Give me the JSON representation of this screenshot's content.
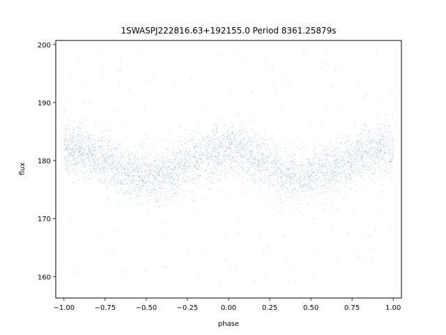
{
  "chart_data": {
    "type": "scatter",
    "title": "1SWASPJ222816.63+192155.0 Period 8361.25879s",
    "xlabel": "phase",
    "ylabel": "flux",
    "xlim": [
      -1.05,
      1.05
    ],
    "ylim": [
      156.3,
      200.7
    ],
    "x_ticks": [
      -1.0,
      -0.75,
      -0.5,
      -0.25,
      0.0,
      0.25,
      0.5,
      0.75,
      1.0
    ],
    "x_tick_labels": [
      "−1.00",
      "−0.75",
      "−0.50",
      "−0.25",
      "0.00",
      "0.25",
      "0.50",
      "0.75",
      "1.00"
    ],
    "y_ticks": [
      160,
      170,
      180,
      190,
      200
    ],
    "y_tick_labels": [
      "160",
      "170",
      "180",
      "190",
      "200"
    ],
    "grid": false,
    "legend": "none",
    "point_color": "#1f77b4",
    "series": [
      {
        "x_range": [
          -1.0,
          1.0
        ],
        "mean_flux": 179.5,
        "modulation_amplitude": 2.3,
        "modulation_peaks_phase": [
          -0.95,
          0.0,
          0.95
        ],
        "modulation_troughs_phase": [
          -0.4,
          0.55
        ],
        "core_spread": 4.0,
        "flux_min": 158.5,
        "flux_max": 199.5,
        "approx_point_count": 60000
      }
    ]
  }
}
